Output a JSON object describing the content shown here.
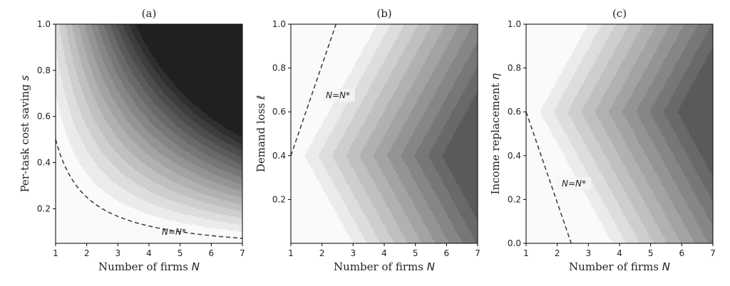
{
  "chart_data": [
    {
      "type": "heatmap",
      "title": "(a)",
      "xlabel": "Number of firms",
      "xvar": "N",
      "ylabel": "Per-task cost saving",
      "yvar": "s",
      "xlim": [
        1,
        7
      ],
      "ylim": [
        0.05,
        1.0
      ],
      "xticks": [
        "1",
        "2",
        "3",
        "4",
        "5",
        "6",
        "7"
      ],
      "yticks": [
        "0.2",
        "0.4",
        "0.6",
        "0.8",
        "1.0"
      ],
      "ytick_values": [
        0.2,
        0.4,
        0.6,
        0.8,
        1.0
      ],
      "boundary": {
        "formula": "s = 0.5 / N",
        "label": "N=N*",
        "label_at": [
          5.8,
          0.1
        ]
      }
    },
    {
      "type": "heatmap",
      "title": "(b)",
      "xlabel": "Number of firms",
      "xvar": "N",
      "ylabel": "Demand loss",
      "yvar": "ℓ",
      "xlim": [
        1,
        7
      ],
      "ylim": [
        0.0,
        1.0
      ],
      "xticks": [
        "1",
        "2",
        "3",
        "4",
        "5",
        "6",
        "7"
      ],
      "yticks": [
        "0.2",
        "0.4",
        "0.6",
        "0.8",
        "1.0"
      ],
      "ytick_values": [
        0.2,
        0.4,
        0.6,
        0.8,
        1.0
      ],
      "boundary": {
        "points": [
          [
            1.0,
            0.4
          ],
          [
            2.45,
            1.0
          ]
        ],
        "label": "N=N*",
        "label_at": [
          2.55,
          0.67
        ]
      }
    },
    {
      "type": "heatmap",
      "title": "(c)",
      "xlabel": "Number of firms",
      "xvar": "N",
      "ylabel": "Income replacement",
      "yvar": "η",
      "xlim": [
        1,
        7
      ],
      "ylim": [
        0.0,
        1.0
      ],
      "xticks": [
        "1",
        "2",
        "3",
        "4",
        "5",
        "6",
        "7"
      ],
      "yticks": [
        "0.0",
        "0.2",
        "0.4",
        "0.6",
        "0.8",
        "1.0"
      ],
      "ytick_values": [
        0.0,
        0.2,
        0.4,
        0.6,
        0.8,
        1.0
      ],
      "boundary": {
        "points": [
          [
            1.0,
            0.6
          ],
          [
            2.45,
            0.0
          ]
        ],
        "label": "N=N*",
        "label_at": [
          2.55,
          0.27
        ]
      }
    }
  ]
}
